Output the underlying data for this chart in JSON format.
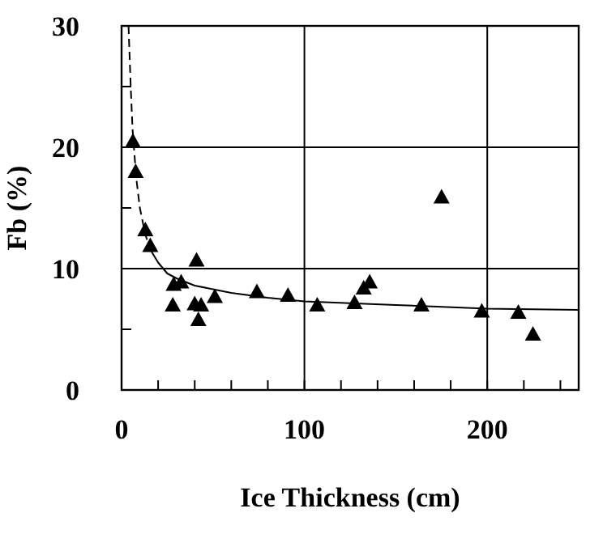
{
  "chart_data": {
    "type": "scatter",
    "xlabel": "Ice Thickness (cm)",
    "ylabel": "Fb (%)",
    "xlim": [
      0,
      250
    ],
    "ylim": [
      0,
      30
    ],
    "xticks": [
      0,
      {
        "value": 20,
        "label": null
      },
      {
        "value": 40,
        "label": null
      },
      {
        "value": 60,
        "label": null
      },
      {
        "value": 80,
        "label": null
      },
      100,
      {
        "value": 120,
        "label": null
      },
      {
        "value": 140,
        "label": null
      },
      {
        "value": 160,
        "label": null
      },
      {
        "value": 180,
        "label": null
      },
      200,
      {
        "value": 220,
        "label": null
      },
      {
        "value": 240,
        "label": null
      }
    ],
    "yticks": [
      0,
      {
        "value": 5,
        "label": null
      },
      10,
      {
        "value": 15,
        "label": null
      },
      20,
      {
        "value": 25,
        "label": null
      },
      30
    ],
    "grid": true,
    "series": [
      {
        "color": "#000000",
        "marker": "triangle",
        "x": [
          6.2,
          7.7,
          13,
          15.7,
          41,
          28.5,
          32.6,
          28,
          40,
          43.5,
          42,
          51,
          74,
          91,
          107,
          127.4,
          132.4,
          135.7,
          175,
          164,
          197,
          217,
          225
        ],
        "values": [
          20.5,
          18.0,
          13.2,
          11.9,
          10.7,
          8.7,
          8.9,
          7.0,
          7.1,
          7.0,
          5.8,
          7.7,
          8.1,
          7.8,
          7.0,
          7.2,
          8.4,
          8.9,
          15.9,
          7.0,
          6.5,
          6.4,
          4.6
        ]
      },
      {
        "type": "line",
        "color": "#000000",
        "line_style": "dashed",
        "marker": "none",
        "x": [
          3.8,
          5,
          6,
          8,
          10,
          13,
          16
        ],
        "values": [
          30,
          25,
          21.5,
          17.5,
          15,
          12.8,
          11.5
        ]
      },
      {
        "type": "line",
        "color": "#000000",
        "line_style": "solid",
        "marker": "none",
        "x": [
          16,
          20,
          25,
          30,
          40,
          60,
          80,
          100,
          150,
          200,
          250
        ],
        "values": [
          11.5,
          10.5,
          9.6,
          9.2,
          8.6,
          8,
          7.6,
          7.3,
          7,
          6.7,
          6.6
        ]
      }
    ]
  }
}
